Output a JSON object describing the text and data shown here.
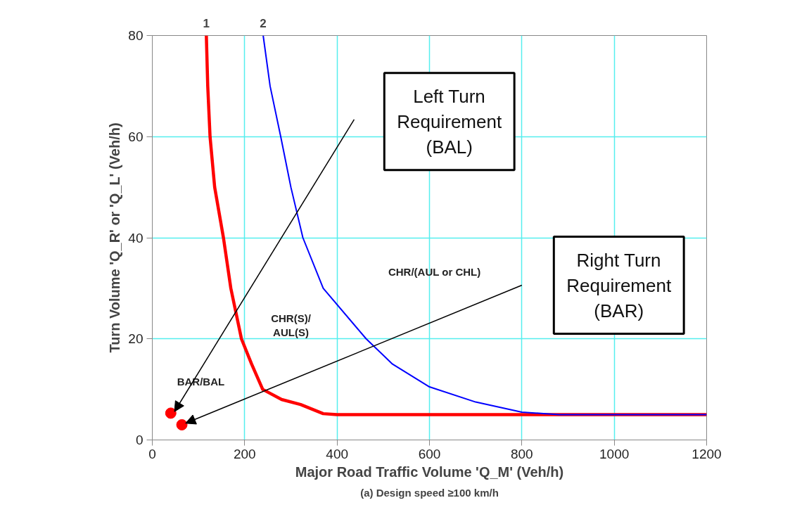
{
  "chart_data": {
    "type": "line",
    "xlabel": "Major Road Traffic Volume 'Q_M' (Veh/h)",
    "ylabel": "Turn Volume 'Q_R' or 'Q_L' (Veh/h)",
    "xlim": [
      0,
      1200
    ],
    "xticks": [
      0,
      200,
      400,
      600,
      800,
      1000,
      1200
    ],
    "ylim": [
      0,
      80
    ],
    "yticks": [
      0,
      20,
      40,
      60,
      80
    ],
    "grid": true,
    "marker": "none",
    "line_style": "solid",
    "series": [
      {
        "name": "1",
        "color": "#ff0000",
        "x": [
          117,
          120,
          125,
          135,
          154,
          170,
          193,
          215,
          239,
          280,
          321,
          370,
          400,
          600,
          800,
          1000,
          1200
        ],
        "values": [
          80,
          70,
          60,
          50,
          40,
          30,
          20,
          15,
          10,
          8,
          7,
          5.2,
          5,
          5,
          5,
          5,
          5
        ]
      },
      {
        "name": "2",
        "color": "#0000ff",
        "x": [
          240,
          255,
          278,
          300,
          326,
          370,
          463,
          520,
          600,
          700,
          800,
          880,
          1000,
          1200
        ],
        "values": [
          80,
          70,
          60,
          50,
          40,
          30,
          20,
          15,
          10.5,
          7.5,
          5.5,
          5,
          5,
          5
        ]
      },
      {
        "type": "scatter",
        "marker": "circle",
        "color": "#ff0000",
        "x": [
          40,
          64
        ],
        "values": [
          5.3,
          3
        ]
      }
    ],
    "annotations": [
      "BAR/BAL",
      "CHR(S)/\nAUL(S)",
      "CHR/(AUL or CHL)",
      "(a) Design speed ≥100 km/h",
      "Left Turn\nRequirement\n(BAL)",
      "Right Turn\nRequirement\n(BAR)"
    ]
  }
}
